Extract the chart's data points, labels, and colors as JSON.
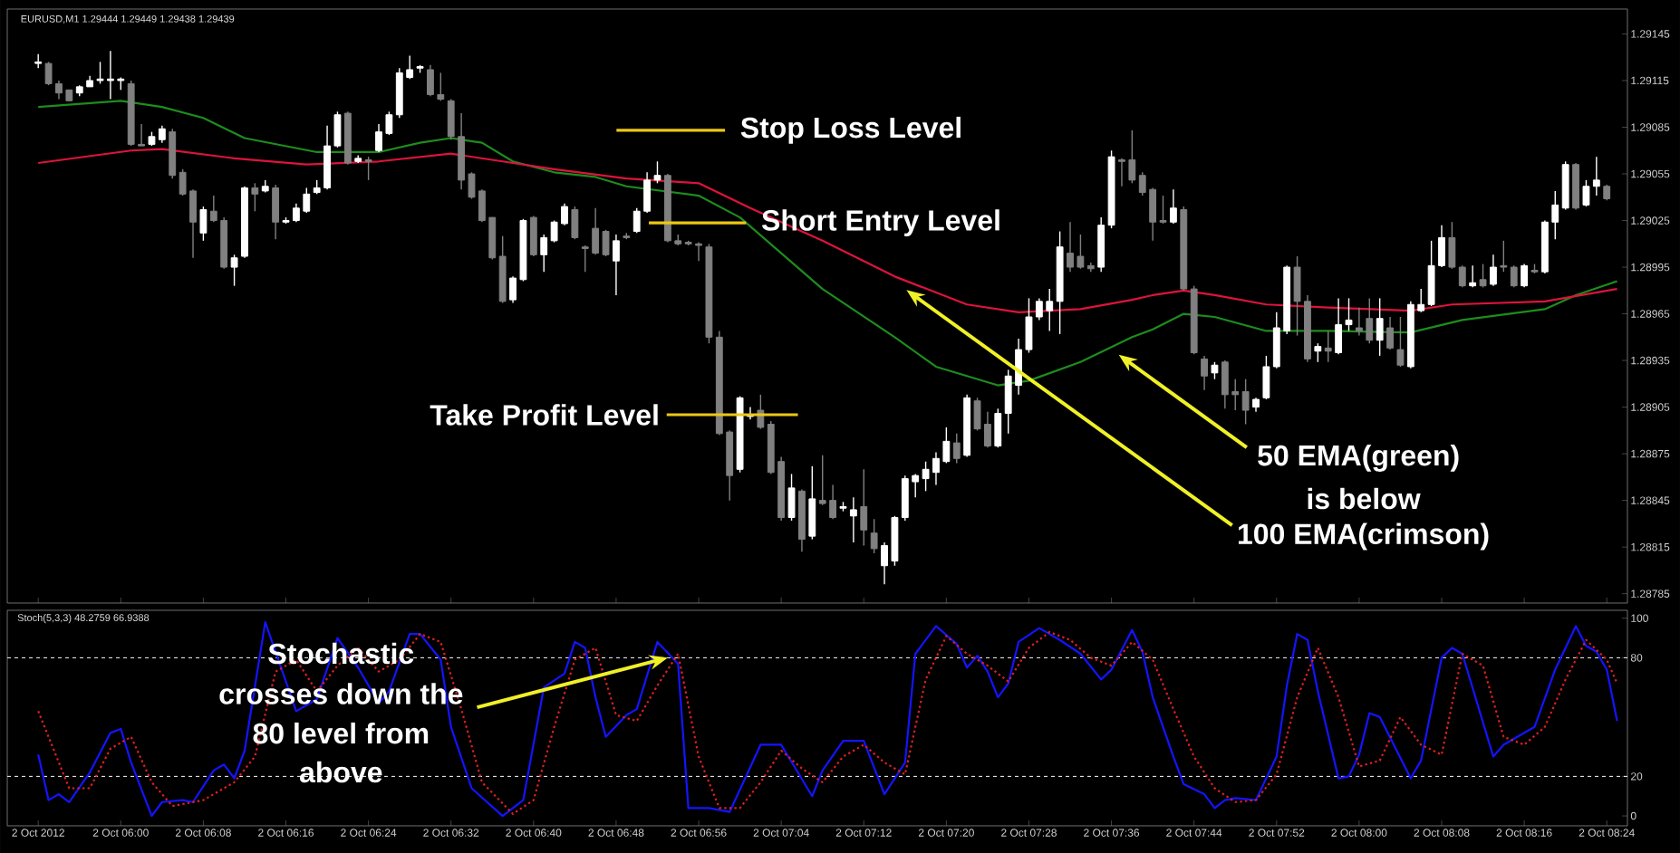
{
  "chart_data": [
    {
      "type": "candlestick",
      "x": [
        "2012-10-02T05:52",
        "2012-10-02T05:53",
        "2012-10-02T05:54",
        "2012-10-02T05:55",
        "2012-10-02T05:56",
        "2012-10-02T05:57",
        "2012-10-02T05:58",
        "2012-10-02T05:59",
        "2012-10-02T06:00",
        "2012-10-02T06:01",
        "2012-10-02T06:02",
        "2012-10-02T06:03",
        "2012-10-02T06:04",
        "2012-10-02T06:05",
        "2012-10-02T06:06",
        "2012-10-02T06:07",
        "2012-10-02T06:08",
        "2012-10-02T06:09",
        "2012-10-02T06:10",
        "2012-10-02T06:11",
        "2012-10-02T06:12",
        "2012-10-02T06:13",
        "2012-10-02T06:14",
        "2012-10-02T06:15",
        "2012-10-02T06:16",
        "2012-10-02T06:17",
        "2012-10-02T06:18",
        "2012-10-02T06:19",
        "2012-10-02T06:20",
        "2012-10-02T06:21",
        "2012-10-02T06:22",
        "2012-10-02T06:23",
        "2012-10-02T06:24",
        "2012-10-02T06:25",
        "2012-10-02T06:26",
        "2012-10-02T06:27",
        "2012-10-02T06:28",
        "2012-10-02T06:29",
        "2012-10-02T06:30",
        "2012-10-02T06:31",
        "2012-10-02T06:32",
        "2012-10-02T06:33",
        "2012-10-02T06:34",
        "2012-10-02T06:35",
        "2012-10-02T06:36",
        "2012-10-02T06:37",
        "2012-10-02T06:38",
        "2012-10-02T06:39",
        "2012-10-02T06:40",
        "2012-10-02T06:41",
        "2012-10-02T06:42",
        "2012-10-02T06:43",
        "2012-10-02T06:44",
        "2012-10-02T06:45",
        "2012-10-02T06:46",
        "2012-10-02T06:47",
        "2012-10-02T06:48",
        "2012-10-02T06:49",
        "2012-10-02T06:50",
        "2012-10-02T06:51",
        "2012-10-02T06:52",
        "2012-10-02T06:53",
        "2012-10-02T06:54",
        "2012-10-02T06:55",
        "2012-10-02T06:56",
        "2012-10-02T06:57",
        "2012-10-02T06:58",
        "2012-10-02T06:59",
        "2012-10-02T07:00",
        "2012-10-02T07:01",
        "2012-10-02T07:02",
        "2012-10-02T07:03",
        "2012-10-02T07:04",
        "2012-10-02T07:05",
        "2012-10-02T07:06",
        "2012-10-02T07:07",
        "2012-10-02T07:08",
        "2012-10-02T07:09",
        "2012-10-02T07:10",
        "2012-10-02T07:11",
        "2012-10-02T07:12",
        "2012-10-02T07:13",
        "2012-10-02T07:14",
        "2012-10-02T07:15",
        "2012-10-02T07:16",
        "2012-10-02T07:17",
        "2012-10-02T07:18",
        "2012-10-02T07:19",
        "2012-10-02T07:20",
        "2012-10-02T07:21",
        "2012-10-02T07:22",
        "2012-10-02T07:23",
        "2012-10-02T07:24",
        "2012-10-02T07:25",
        "2012-10-02T07:26",
        "2012-10-02T07:27",
        "2012-10-02T07:28",
        "2012-10-02T07:29",
        "2012-10-02T07:30",
        "2012-10-02T07:31",
        "2012-10-02T07:32",
        "2012-10-02T07:33",
        "2012-10-02T07:34",
        "2012-10-02T07:35",
        "2012-10-02T07:36",
        "2012-10-02T07:37",
        "2012-10-02T07:38",
        "2012-10-02T07:39",
        "2012-10-02T07:40",
        "2012-10-02T07:41",
        "2012-10-02T07:42",
        "2012-10-02T07:43",
        "2012-10-02T07:44",
        "2012-10-02T07:45",
        "2012-10-02T07:46",
        "2012-10-02T07:47",
        "2012-10-02T07:48",
        "2012-10-02T07:49",
        "2012-10-02T07:50",
        "2012-10-02T07:51",
        "2012-10-02T07:52",
        "2012-10-02T07:53",
        "2012-10-02T07:54",
        "2012-10-02T07:55",
        "2012-10-02T07:56",
        "2012-10-02T07:57",
        "2012-10-02T07:58",
        "2012-10-02T07:59",
        "2012-10-02T08:00",
        "2012-10-02T08:01",
        "2012-10-02T08:02",
        "2012-10-02T08:03",
        "2012-10-02T08:04",
        "2012-10-02T08:05",
        "2012-10-02T08:06",
        "2012-10-02T08:07",
        "2012-10-02T08:08",
        "2012-10-02T08:09",
        "2012-10-02T08:10",
        "2012-10-02T08:11",
        "2012-10-02T08:12",
        "2012-10-02T08:13",
        "2012-10-02T08:14",
        "2012-10-02T08:15",
        "2012-10-02T08:16",
        "2012-10-02T08:17",
        "2012-10-02T08:18",
        "2012-10-02T08:19",
        "2012-10-02T08:20",
        "2012-10-02T08:21",
        "2012-10-02T08:22",
        "2012-10-02T08:23",
        "2012-10-02T08:24"
      ],
      "ohlc": [
        [
          1.29126,
          1.29132,
          1.29123,
          1.29127
        ],
        [
          1.29126,
          1.29127,
          1.29112,
          1.29113
        ],
        [
          1.29113,
          1.29115,
          1.29103,
          1.29107
        ],
        [
          1.29109,
          1.29109,
          1.29102,
          1.29102
        ],
        [
          1.29107,
          1.29112,
          1.29105,
          1.29111
        ],
        [
          1.29111,
          1.29118,
          1.29111,
          1.29115
        ],
        [
          1.29115,
          1.29127,
          1.29113,
          1.29116
        ],
        [
          1.29115,
          1.29134,
          1.29103,
          1.29116
        ],
        [
          1.29115,
          1.29117,
          1.29109,
          1.29116
        ],
        [
          1.29113,
          1.29115,
          1.29073,
          1.29074
        ],
        [
          1.29074,
          1.29087,
          1.29073,
          1.29073
        ],
        [
          1.29074,
          1.29082,
          1.29073,
          1.29079
        ],
        [
          1.29077,
          1.29086,
          1.29075,
          1.29084
        ],
        [
          1.29082,
          1.29084,
          1.29052,
          1.29054
        ],
        [
          1.29056,
          1.29058,
          1.29041,
          1.29042
        ],
        [
          1.29044,
          1.29045,
          1.29001,
          1.29024
        ],
        [
          1.29017,
          1.29034,
          1.29012,
          1.29032
        ],
        [
          1.29031,
          1.29041,
          1.29024,
          1.29025
        ],
        [
          1.29025,
          1.29027,
          1.28994,
          1.28995
        ],
        [
          1.28995,
          1.29003,
          1.28983,
          1.29001
        ],
        [
          1.29002,
          1.29047,
          1.29001,
          1.29046
        ],
        [
          1.29046,
          1.29049,
          1.29031,
          1.29042
        ],
        [
          1.29044,
          1.29051,
          1.29043,
          1.29047
        ],
        [
          1.29046,
          1.29048,
          1.29013,
          1.29024
        ],
        [
          1.29024,
          1.29027,
          1.29023,
          1.29025
        ],
        [
          1.29025,
          1.29036,
          1.29024,
          1.29033
        ],
        [
          1.29031,
          1.29046,
          1.2903,
          1.29042
        ],
        [
          1.29043,
          1.29051,
          1.29042,
          1.29046
        ],
        [
          1.29046,
          1.29086,
          1.29045,
          1.29073
        ],
        [
          1.29073,
          1.29095,
          1.29072,
          1.29093
        ],
        [
          1.29094,
          1.29095,
          1.29061,
          1.29062
        ],
        [
          1.29063,
          1.29067,
          1.29062,
          1.29065
        ],
        [
          1.29064,
          1.29066,
          1.29051,
          1.29063
        ],
        [
          1.2907,
          1.29087,
          1.29069,
          1.29082
        ],
        [
          1.29081,
          1.29095,
          1.2908,
          1.29093
        ],
        [
          1.29093,
          1.29123,
          1.29091,
          1.2912
        ],
        [
          1.29117,
          1.29131,
          1.29116,
          1.29122
        ],
        [
          1.29123,
          1.29125,
          1.2912,
          1.29124
        ],
        [
          1.29122,
          1.29125,
          1.29105,
          1.29106
        ],
        [
          1.29106,
          1.2912,
          1.29102,
          1.29103
        ],
        [
          1.29102,
          1.29103,
          1.29077,
          1.29079
        ],
        [
          1.29079,
          1.29094,
          1.29045,
          1.29051
        ],
        [
          1.29055,
          1.29056,
          1.29039,
          1.2904
        ],
        [
          1.29044,
          1.29045,
          1.29024,
          1.29025
        ],
        [
          1.29027,
          1.29027,
          1.29,
          1.29001
        ],
        [
          1.29002,
          1.29015,
          1.28972,
          1.28973
        ],
        [
          1.28974,
          1.28989,
          1.28972,
          1.28988
        ],
        [
          1.28987,
          1.29026,
          1.28986,
          1.29025
        ],
        [
          1.29027,
          1.29028,
          1.29002,
          1.29003
        ],
        [
          1.29003,
          1.29016,
          1.28992,
          1.29014
        ],
        [
          1.29012,
          1.29025,
          1.29011,
          1.29024
        ],
        [
          1.29023,
          1.29036,
          1.29022,
          1.29034
        ],
        [
          1.29032,
          1.29034,
          1.29013,
          1.29014
        ],
        [
          1.29008,
          1.29009,
          1.28992,
          1.29007
        ],
        [
          1.2902,
          1.29033,
          1.29003,
          1.29004
        ],
        [
          1.29018,
          1.29019,
          1.29002,
          1.29003
        ],
        [
          1.28999,
          1.29016,
          1.28977,
          1.29012
        ],
        [
          1.29015,
          1.29017,
          1.29013,
          1.29014
        ],
        [
          1.29018,
          1.29033,
          1.29017,
          1.29031
        ],
        [
          1.29031,
          1.29056,
          1.2903,
          1.29051
        ],
        [
          1.29051,
          1.29063,
          1.29049,
          1.29054
        ],
        [
          1.29054,
          1.29055,
          1.29011,
          1.29012
        ],
        [
          1.29012,
          1.29016,
          1.29009,
          1.2901
        ],
        [
          1.29011,
          1.29012,
          1.29009,
          1.2901
        ],
        [
          1.2901,
          1.29011,
          1.28999,
          1.29009
        ],
        [
          1.29008,
          1.2901,
          1.28946,
          1.2895
        ],
        [
          1.2895,
          1.28954,
          1.28887,
          1.28888
        ],
        [
          1.28889,
          1.2889,
          1.28845,
          1.28861
        ],
        [
          1.28865,
          1.28912,
          1.28863,
          1.28911
        ],
        [
          1.28899,
          1.28905,
          1.28897,
          1.289
        ],
        [
          1.28903,
          1.28913,
          1.28891,
          1.28892
        ],
        [
          1.28894,
          1.28896,
          1.28862,
          1.28863
        ],
        [
          1.2887,
          1.28873,
          1.28832,
          1.28834
        ],
        [
          1.28834,
          1.28862,
          1.28832,
          1.28853
        ],
        [
          1.28851,
          1.28852,
          1.28812,
          1.2882
        ],
        [
          1.28822,
          1.28867,
          1.2882,
          1.28846
        ],
        [
          1.28845,
          1.28874,
          1.28842,
          1.28843
        ],
        [
          1.28845,
          1.28855,
          1.28833,
          1.28834
        ],
        [
          1.2884,
          1.28844,
          1.28838,
          1.28841
        ],
        [
          1.28835,
          1.28847,
          1.28818,
          1.28839
        ],
        [
          1.28841,
          1.28865,
          1.28816,
          1.28826
        ],
        [
          1.28824,
          1.28833,
          1.28811,
          1.28814
        ],
        [
          1.28803,
          1.28818,
          1.28791,
          1.28816
        ],
        [
          1.28806,
          1.28835,
          1.28803,
          1.28834
        ],
        [
          1.28834,
          1.28861,
          1.28832,
          1.28859
        ],
        [
          1.28857,
          1.28862,
          1.28847,
          1.28861
        ],
        [
          1.28859,
          1.2887,
          1.28851,
          1.28865
        ],
        [
          1.28863,
          1.28876,
          1.28855,
          1.28872
        ],
        [
          1.2887,
          1.28892,
          1.28869,
          1.28883
        ],
        [
          1.28882,
          1.28888,
          1.28869,
          1.28872
        ],
        [
          1.28874,
          1.28913,
          1.28873,
          1.28911
        ],
        [
          1.28909,
          1.28911,
          1.2889,
          1.28891
        ],
        [
          1.28894,
          1.28902,
          1.28879,
          1.2888
        ],
        [
          1.2888,
          1.28904,
          1.28879,
          1.28901
        ],
        [
          1.28901,
          1.28929,
          1.28888,
          1.28925
        ],
        [
          1.28919,
          1.28949,
          1.28913,
          1.28942
        ],
        [
          1.28942,
          1.28975,
          1.2894,
          1.28963
        ],
        [
          1.28963,
          1.28975,
          1.28961,
          1.28973
        ],
        [
          1.28967,
          1.28981,
          1.28954,
          1.28973
        ],
        [
          1.28973,
          1.29018,
          1.28952,
          1.29008
        ],
        [
          1.29004,
          1.29024,
          1.28992,
          1.28995
        ],
        [
          1.29002,
          1.29016,
          1.28994,
          1.28995
        ],
        [
          1.28996,
          1.28998,
          1.28992,
          1.28994
        ],
        [
          1.28995,
          1.29027,
          1.28992,
          1.29022
        ],
        [
          1.29022,
          1.2907,
          1.2902,
          1.29066
        ],
        [
          1.29064,
          1.29065,
          1.29047,
          1.29063
        ],
        [
          1.29064,
          1.29083,
          1.29049,
          1.29051
        ],
        [
          1.29054,
          1.29056,
          1.29041,
          1.29043
        ],
        [
          1.29045,
          1.29046,
          1.29012,
          1.29024
        ],
        [
          1.29025,
          1.29041,
          1.29023,
          1.29024
        ],
        [
          1.29024,
          1.29045,
          1.29023,
          1.29033
        ],
        [
          1.29032,
          1.29034,
          1.2898,
          1.28981
        ],
        [
          1.28981,
          1.28983,
          1.28939,
          1.2894
        ],
        [
          1.28936,
          1.28938,
          1.28916,
          1.28925
        ],
        [
          1.28927,
          1.28934,
          1.28923,
          1.28932
        ],
        [
          1.28934,
          1.28935,
          1.28904,
          1.28913
        ],
        [
          1.28915,
          1.28923,
          1.28903,
          1.28913
        ],
        [
          1.28915,
          1.28923,
          1.28894,
          1.28903
        ],
        [
          1.28905,
          1.28911,
          1.28902,
          1.2891
        ],
        [
          1.28911,
          1.28938,
          1.2891,
          1.28931
        ],
        [
          1.28931,
          1.28966,
          1.2893,
          1.28956
        ],
        [
          1.28954,
          1.28996,
          1.28952,
          1.28995
        ],
        [
          1.28995,
          1.29002,
          1.28951,
          1.28973
        ],
        [
          1.28973,
          1.28977,
          1.28934,
          1.28936
        ],
        [
          1.28941,
          1.28946,
          1.28934,
          1.28944
        ],
        [
          1.28943,
          1.28954,
          1.28934,
          1.28941
        ],
        [
          1.2894,
          1.28975,
          1.28939,
          1.28958
        ],
        [
          1.28958,
          1.28975,
          1.28954,
          1.28961
        ],
        [
          1.28956,
          1.28969,
          1.28951,
          1.28954
        ],
        [
          1.28962,
          1.28975,
          1.28946,
          1.28948
        ],
        [
          1.28948,
          1.28975,
          1.28938,
          1.28962
        ],
        [
          1.28956,
          1.28963,
          1.28942,
          1.28943
        ],
        [
          1.28942,
          1.28963,
          1.28931,
          1.28932
        ],
        [
          1.28931,
          1.28973,
          1.2893,
          1.28971
        ],
        [
          1.28967,
          1.28981,
          1.28966,
          1.28971
        ],
        [
          1.28971,
          1.29012,
          1.2897,
          1.28996
        ],
        [
          1.28996,
          1.29022,
          1.28995,
          1.29014
        ],
        [
          1.29014,
          1.29024,
          1.28994,
          1.28995
        ],
        [
          1.28995,
          1.28996,
          1.28982,
          1.28983
        ],
        [
          1.28983,
          1.28996,
          1.28982,
          1.28985
        ],
        [
          1.28987,
          1.28997,
          1.28982,
          1.28983
        ],
        [
          1.28984,
          1.29003,
          1.28983,
          1.28995
        ],
        [
          1.28996,
          1.29012,
          1.28992,
          1.28995
        ],
        [
          1.28995,
          1.28996,
          1.28982,
          1.28983
        ],
        [
          1.28983,
          1.28997,
          1.28982,
          1.28996
        ],
        [
          1.28993,
          1.28997,
          1.28991,
          1.28992
        ],
        [
          1.28992,
          1.29025,
          1.28991,
          1.29024
        ],
        [
          1.29024,
          1.29044,
          1.29013,
          1.29035
        ],
        [
          1.29033,
          1.29063,
          1.29032,
          1.29061
        ],
        [
          1.29061,
          1.29062,
          1.29032,
          1.29033
        ],
        [
          1.29035,
          1.29051,
          1.29034,
          1.29047
        ],
        [
          1.29047,
          1.29066,
          1.29041,
          1.29051
        ],
        [
          1.29047,
          1.29048,
          1.29038,
          1.29039
        ]
      ],
      "colors": [
        "#ffffff",
        "#808080",
        "#808080",
        "#808080",
        "#ffffff",
        "#ffffff",
        "#ffffff",
        "#ffffff",
        "#ffffff",
        "#808080",
        "#808080",
        "#ffffff",
        "#ffffff",
        "#808080",
        "#808080",
        "#808080",
        "#ffffff",
        "#808080",
        "#808080",
        "#ffffff",
        "#ffffff",
        "#808080",
        "#ffffff",
        "#808080",
        "#ffffff",
        "#ffffff",
        "#ffffff",
        "#ffffff",
        "#ffffff",
        "#ffffff",
        "#808080",
        "#ffffff",
        "#808080",
        "#ffffff",
        "#ffffff",
        "#ffffff",
        "#ffffff",
        "#ffffff",
        "#808080",
        "#808080",
        "#808080",
        "#808080",
        "#808080",
        "#808080",
        "#808080",
        "#808080",
        "#ffffff",
        "#ffffff",
        "#808080",
        "#ffffff",
        "#ffffff",
        "#ffffff",
        "#808080",
        "#808080",
        "#808080",
        "#808080",
        "#ffffff",
        "#808080",
        "#ffffff",
        "#ffffff",
        "#ffffff",
        "#808080",
        "#808080",
        "#808080",
        "#808080",
        "#808080",
        "#808080",
        "#808080",
        "#ffffff",
        "#ffffff",
        "#808080",
        "#808080",
        "#808080",
        "#ffffff",
        "#808080",
        "#ffffff",
        "#808080",
        "#808080",
        "#ffffff",
        "#ffffff",
        "#808080",
        "#808080",
        "#ffffff",
        "#ffffff",
        "#ffffff",
        "#ffffff",
        "#ffffff",
        "#ffffff",
        "#ffffff",
        "#808080",
        "#ffffff",
        "#808080",
        "#808080",
        "#ffffff",
        "#ffffff",
        "#ffffff",
        "#ffffff",
        "#ffffff",
        "#ffffff",
        "#ffffff",
        "#808080",
        "#808080",
        "#808080",
        "#ffffff",
        "#ffffff",
        "#808080",
        "#808080",
        "#808080",
        "#808080",
        "#808080",
        "#ffffff",
        "#808080",
        "#808080",
        "#808080",
        "#ffffff",
        "#808080",
        "#808080",
        "#808080",
        "#ffffff",
        "#ffffff",
        "#ffffff",
        "#ffffff",
        "#808080",
        "#808080",
        "#ffffff",
        "#808080",
        "#ffffff",
        "#ffffff",
        "#808080",
        "#808080",
        "#ffffff",
        "#808080",
        "#808080",
        "#ffffff",
        "#ffffff",
        "#ffffff",
        "#ffffff",
        "#808080",
        "#808080",
        "#ffffff",
        "#808080",
        "#ffffff",
        "#808080",
        "#808080",
        "#ffffff",
        "#808080",
        "#ffffff",
        "#ffffff",
        "#ffffff",
        "#808080",
        "#ffffff",
        "#ffffff",
        "#808080"
      ],
      "series": [
        {
          "type": "line",
          "color": "#1e8c1e",
          "x": [
            "2012-10-02T05:52",
            "2012-10-02T06:00",
            "2012-10-02T06:04",
            "2012-10-02T06:08",
            "2012-10-02T06:12",
            "2012-10-02T06:19",
            "2012-10-02T06:25",
            "2012-10-02T06:29",
            "2012-10-02T06:32",
            "2012-10-02T06:35",
            "2012-10-02T06:38",
            "2012-10-02T06:42",
            "2012-10-02T06:46",
            "2012-10-02T06:49",
            "2012-10-02T06:56",
            "2012-10-02T07:00",
            "2012-10-02T07:04",
            "2012-10-02T07:08",
            "2012-10-02T07:15",
            "2012-10-02T07:19",
            "2012-10-02T07:25",
            "2012-10-02T07:28",
            "2012-10-02T07:33",
            "2012-10-02T07:38",
            "2012-10-02T07:40",
            "2012-10-02T07:43",
            "2012-10-02T07:46",
            "2012-10-02T07:51",
            "2012-10-02T07:57",
            "2012-10-02T08:05",
            "2012-10-02T08:10",
            "2012-10-02T08:18",
            "2012-10-02T08:21",
            "2012-10-02T08:25"
          ],
          "values": [
            1.29098,
            1.29102,
            1.29098,
            1.29091,
            1.29078,
            1.29069,
            1.29069,
            1.29075,
            1.29078,
            1.29075,
            1.29063,
            1.29056,
            1.29053,
            1.29047,
            1.29041,
            1.29027,
            1.29004,
            1.28981,
            1.2895,
            1.28931,
            1.28919,
            1.28922,
            1.28934,
            1.2895,
            1.28955,
            1.28965,
            1.28963,
            1.28954,
            1.28954,
            1.28953,
            1.28961,
            1.28968,
            1.28977,
            1.28986
          ]
        },
        {
          "type": "line",
          "color": "#dc143c",
          "x": [
            "2012-10-02T05:52",
            "2012-10-02T06:01",
            "2012-10-02T06:04",
            "2012-10-02T06:11",
            "2012-10-02T06:18",
            "2012-10-02T06:25",
            "2012-10-02T06:32",
            "2012-10-02T06:37",
            "2012-10-02T06:42",
            "2012-10-02T06:49",
            "2012-10-02T06:56",
            "2012-10-02T07:01",
            "2012-10-02T07:08",
            "2012-10-02T07:15",
            "2012-10-02T07:22",
            "2012-10-02T07:27",
            "2012-10-02T07:33",
            "2012-10-02T07:38",
            "2012-10-02T07:40",
            "2012-10-02T07:43",
            "2012-10-02T07:46",
            "2012-10-02T07:51",
            "2012-10-02T07:57",
            "2012-10-02T08:05",
            "2012-10-02T08:09",
            "2012-10-02T08:18",
            "2012-10-02T08:25"
          ],
          "values": [
            1.29062,
            1.2907,
            1.29071,
            1.29065,
            1.29061,
            1.29063,
            1.29068,
            1.29063,
            1.29058,
            1.29052,
            1.29049,
            1.29033,
            1.29012,
            1.28989,
            1.28971,
            1.28966,
            1.28968,
            1.28974,
            1.28977,
            1.2898,
            1.28977,
            1.28971,
            1.28969,
            1.28967,
            1.28971,
            1.28973,
            1.28981
          ]
        }
      ],
      "xlim": [
        "2012-10-02T05:49",
        "2012-10-02T08:26"
      ],
      "xticks": [
        {
          "value": "2012-10-02T05:52",
          "label": null
        },
        {
          "value": "2012-10-02T06:00",
          "label": null
        },
        {
          "value": "2012-10-02T06:08",
          "label": null
        },
        {
          "value": "2012-10-02T06:16",
          "label": null
        },
        {
          "value": "2012-10-02T06:24",
          "label": null
        },
        {
          "value": "2012-10-02T06:32",
          "label": null
        },
        {
          "value": "2012-10-02T06:40",
          "label": null
        },
        {
          "value": "2012-10-02T06:48",
          "label": null
        },
        {
          "value": "2012-10-02T06:56",
          "label": null
        },
        {
          "value": "2012-10-02T07:04",
          "label": null
        },
        {
          "value": "2012-10-02T07:12",
          "label": null
        },
        {
          "value": "2012-10-02T07:20",
          "label": null
        },
        {
          "value": "2012-10-02T07:28",
          "label": null
        },
        {
          "value": "2012-10-02T07:36",
          "label": null
        },
        {
          "value": "2012-10-02T07:44",
          "label": null
        },
        {
          "value": "2012-10-02T07:52",
          "label": null
        },
        {
          "value": "2012-10-02T08:00",
          "label": null
        },
        {
          "value": "2012-10-02T08:08",
          "label": null
        },
        {
          "value": "2012-10-02T08:16",
          "label": null
        },
        {
          "value": "2012-10-02T08:24",
          "label": null
        }
      ],
      "ylim": [
        1.28779,
        1.29161
      ],
      "yticks": [
        1.28785,
        1.28815,
        1.28845,
        1.28875,
        1.28905,
        1.28935,
        1.28965,
        1.28995,
        1.29025,
        1.29055,
        1.29085,
        1.29115,
        1.29145
      ],
      "tick_labels": "y",
      "annotations": [
        "EURUSD,M1  1.29444 1.29449 1.29438 1.29439",
        "Stop Loss Level",
        "Short Entry Level",
        "Take Profit Level",
        "50 EMA(green)",
        "is below",
        "100 EMA(crimson)"
      ]
    },
    {
      "type": "line",
      "series": [
        {
          "color": "#1414ff",
          "line_style": "solid",
          "x": [
            "2012-10-02T05:52",
            "2012-10-02T05:53",
            "2012-10-02T05:54",
            "2012-10-02T05:55",
            "2012-10-02T05:57",
            "2012-10-02T05:59",
            "2012-10-02T06:00",
            "2012-10-02T06:01",
            "2012-10-02T06:03",
            "2012-10-02T06:04",
            "2012-10-02T06:06",
            "2012-10-02T06:07",
            "2012-10-02T06:09",
            "2012-10-02T06:10",
            "2012-10-02T06:11",
            "2012-10-02T06:12",
            "2012-10-02T06:14",
            "2012-10-02T06:15",
            "2012-10-02T06:17",
            "2012-10-02T06:19",
            "2012-10-02T06:21",
            "2012-10-02T06:23",
            "2012-10-02T06:25",
            "2012-10-02T06:26",
            "2012-10-02T06:28",
            "2012-10-02T06:29",
            "2012-10-02T06:31",
            "2012-10-02T06:32",
            "2012-10-02T06:34",
            "2012-10-02T06:37",
            "2012-10-02T06:39",
            "2012-10-02T06:41",
            "2012-10-02T06:43",
            "2012-10-02T06:44",
            "2012-10-02T06:45",
            "2012-10-02T06:46",
            "2012-10-02T06:47",
            "2012-10-02T06:49",
            "2012-10-02T06:50",
            "2012-10-02T06:52",
            "2012-10-02T06:54",
            "2012-10-02T06:55",
            "2012-10-02T06:57",
            "2012-10-02T06:59",
            "2012-10-02T07:02",
            "2012-10-02T07:04",
            "2012-10-02T07:07",
            "2012-10-02T07:08",
            "2012-10-02T07:10",
            "2012-10-02T07:12",
            "2012-10-02T07:14",
            "2012-10-02T07:16",
            "2012-10-02T07:17",
            "2012-10-02T07:19",
            "2012-10-02T07:21",
            "2012-10-02T07:22",
            "2012-10-02T07:23",
            "2012-10-02T07:24",
            "2012-10-02T07:25",
            "2012-10-02T07:26",
            "2012-10-02T07:27",
            "2012-10-02T07:29",
            "2012-10-02T07:31",
            "2012-10-02T07:33",
            "2012-10-02T07:35",
            "2012-10-02T07:36",
            "2012-10-02T07:38",
            "2012-10-02T07:39",
            "2012-10-02T07:40",
            "2012-10-02T07:42",
            "2012-10-02T07:43",
            "2012-10-02T07:45",
            "2012-10-02T07:46",
            "2012-10-02T07:47",
            "2012-10-02T07:48",
            "2012-10-02T07:50",
            "2012-10-02T07:52",
            "2012-10-02T07:53",
            "2012-10-02T07:54",
            "2012-10-02T07:55",
            "2012-10-02T07:56",
            "2012-10-02T07:58",
            "2012-10-02T07:59",
            "2012-10-02T08:00",
            "2012-10-02T08:01",
            "2012-10-02T08:02",
            "2012-10-02T08:05",
            "2012-10-02T08:06",
            "2012-10-02T08:08",
            "2012-10-02T08:09",
            "2012-10-02T08:10",
            "2012-10-02T08:13",
            "2012-10-02T08:14",
            "2012-10-02T08:17",
            "2012-10-02T08:19",
            "2012-10-02T08:21",
            "2012-10-02T08:22",
            "2012-10-02T08:23",
            "2012-10-02T08:24",
            "2012-10-02T08:25"
          ],
          "values": [
            31,
            8,
            11,
            7,
            22,
            42,
            44,
            27,
            0,
            7,
            8,
            7,
            23,
            26,
            19,
            33,
            98,
            83,
            53,
            59,
            90,
            75,
            57,
            63,
            92,
            92,
            79,
            45,
            14,
            0,
            8,
            65,
            72,
            88,
            85,
            60,
            40,
            51,
            54,
            88,
            77,
            4,
            4,
            2,
            36,
            36,
            10,
            23,
            38,
            38,
            11,
            27,
            82,
            96,
            87,
            75,
            81,
            73,
            60,
            67,
            88,
            95,
            89,
            82,
            69,
            74,
            94,
            83,
            60,
            30,
            16,
            11,
            4,
            8,
            9,
            8,
            30,
            66,
            92,
            89,
            63,
            19,
            20,
            31,
            52,
            50,
            19,
            28,
            80,
            85,
            82,
            30,
            36,
            45,
            74,
            96,
            86,
            83,
            74,
            48
          ]
        },
        {
          "color": "#dc2020",
          "line_style": "dotted",
          "x": [
            "2012-10-02T05:52",
            "2012-10-02T05:53",
            "2012-10-02T05:55",
            "2012-10-02T05:57",
            "2012-10-02T05:59",
            "2012-10-02T06:01",
            "2012-10-02T06:03",
            "2012-10-02T06:05",
            "2012-10-02T06:08",
            "2012-10-02T06:11",
            "2012-10-02T06:13",
            "2012-10-02T06:15",
            "2012-10-02T06:17",
            "2012-10-02T06:19",
            "2012-10-02T06:21",
            "2012-10-02T06:23",
            "2012-10-02T06:25",
            "2012-10-02T06:27",
            "2012-10-02T06:29",
            "2012-10-02T06:31",
            "2012-10-02T06:33",
            "2012-10-02T06:35",
            "2012-10-02T06:38",
            "2012-10-02T06:40",
            "2012-10-02T06:42",
            "2012-10-02T06:44",
            "2012-10-02T06:46",
            "2012-10-02T06:48",
            "2012-10-02T06:50",
            "2012-10-02T06:52",
            "2012-10-02T06:54",
            "2012-10-02T06:56",
            "2012-10-02T06:58",
            "2012-10-02T07:00",
            "2012-10-02T07:02",
            "2012-10-02T07:04",
            "2012-10-02T07:06",
            "2012-10-02T07:08",
            "2012-10-02T07:10",
            "2012-10-02T07:12",
            "2012-10-02T07:14",
            "2012-10-02T07:16",
            "2012-10-02T07:18",
            "2012-10-02T07:20",
            "2012-10-02T07:22",
            "2012-10-02T07:24",
            "2012-10-02T07:26",
            "2012-10-02T07:28",
            "2012-10-02T07:30",
            "2012-10-02T07:32",
            "2012-10-02T07:34",
            "2012-10-02T07:36",
            "2012-10-02T07:38",
            "2012-10-02T07:40",
            "2012-10-02T07:42",
            "2012-10-02T07:44",
            "2012-10-02T07:46",
            "2012-10-02T07:48",
            "2012-10-02T07:50",
            "2012-10-02T07:52",
            "2012-10-02T07:54",
            "2012-10-02T07:56",
            "2012-10-02T07:58",
            "2012-10-02T08:00",
            "2012-10-02T08:02",
            "2012-10-02T08:04",
            "2012-10-02T08:06",
            "2012-10-02T08:08",
            "2012-10-02T08:10",
            "2012-10-02T08:12",
            "2012-10-02T08:14",
            "2012-10-02T08:16",
            "2012-10-02T08:18",
            "2012-10-02T08:20",
            "2012-10-02T08:22",
            "2012-10-02T08:24",
            "2012-10-02T08:25"
          ],
          "values": [
            53,
            40,
            14,
            14,
            34,
            40,
            17,
            5,
            8,
            17,
            30,
            73,
            79,
            63,
            76,
            85,
            73,
            79,
            92,
            88,
            54,
            17,
            1,
            8,
            45,
            79,
            85,
            51,
            48,
            66,
            82,
            30,
            4,
            4,
            17,
            33,
            24,
            17,
            30,
            36,
            27,
            21,
            69,
            91,
            82,
            76,
            68,
            85,
            93,
            89,
            80,
            76,
            88,
            79,
            54,
            30,
            14,
            7,
            8,
            21,
            60,
            85,
            60,
            25,
            28,
            50,
            36,
            31,
            82,
            76,
            40,
            36,
            45,
            69,
            89,
            79,
            67
          ]
        }
      ],
      "xlim": [
        "2012-10-02T05:49",
        "2012-10-02T08:26"
      ],
      "ylim": [
        -5,
        104
      ],
      "yticks": [
        0,
        20,
        80,
        100
      ],
      "xticks": [
        {
          "value": "2012-10-02T05:52",
          "label": "2 Oct 2012"
        },
        {
          "value": "2012-10-02T06:00",
          "label": "2 Oct 06:00"
        },
        {
          "value": "2012-10-02T06:08",
          "label": "2 Oct 06:08"
        },
        {
          "value": "2012-10-02T06:16",
          "label": "2 Oct 06:16"
        },
        {
          "value": "2012-10-02T06:24",
          "label": "2 Oct 06:24"
        },
        {
          "value": "2012-10-02T06:32",
          "label": "2 Oct 06:32"
        },
        {
          "value": "2012-10-02T06:40",
          "label": "2 Oct 06:40"
        },
        {
          "value": "2012-10-02T06:48",
          "label": "2 Oct 06:48"
        },
        {
          "value": "2012-10-02T06:56",
          "label": "2 Oct 06:56"
        },
        {
          "value": "2012-10-02T07:04",
          "label": "2 Oct 07:04"
        },
        {
          "value": "2012-10-02T07:12",
          "label": "2 Oct 07:12"
        },
        {
          "value": "2012-10-02T07:20",
          "label": "2 Oct 07:20"
        },
        {
          "value": "2012-10-02T07:28",
          "label": "2 Oct 07:28"
        },
        {
          "value": "2012-10-02T07:36",
          "label": "2 Oct 07:36"
        },
        {
          "value": "2012-10-02T07:44",
          "label": "2 Oct 07:44"
        },
        {
          "value": "2012-10-02T07:52",
          "label": "2 Oct 07:52"
        },
        {
          "value": "2012-10-02T08:00",
          "label": "2 Oct 08:00"
        },
        {
          "value": "2012-10-02T08:08",
          "label": "2 Oct 08:08"
        },
        {
          "value": "2012-10-02T08:16",
          "label": "2 Oct 08:16"
        },
        {
          "value": "2012-10-02T08:24",
          "label": "2 Oct 08:24"
        }
      ],
      "ref_lines": [
        {
          "axis": "y",
          "value": 80,
          "color": "#ffffff",
          "line_style": "dashed"
        },
        {
          "axis": "y",
          "value": 20,
          "color": "#ffffff",
          "line_style": "dashed"
        }
      ],
      "annotations": [
        "Stoch(5,3,3) 48.2759 66.9388",
        "Stochastic",
        {
          "text": "crosses down the",
          "x": "2012-10-02T06:53",
          "y": 80
        },
        "80 level from",
        "above"
      ]
    }
  ]
}
